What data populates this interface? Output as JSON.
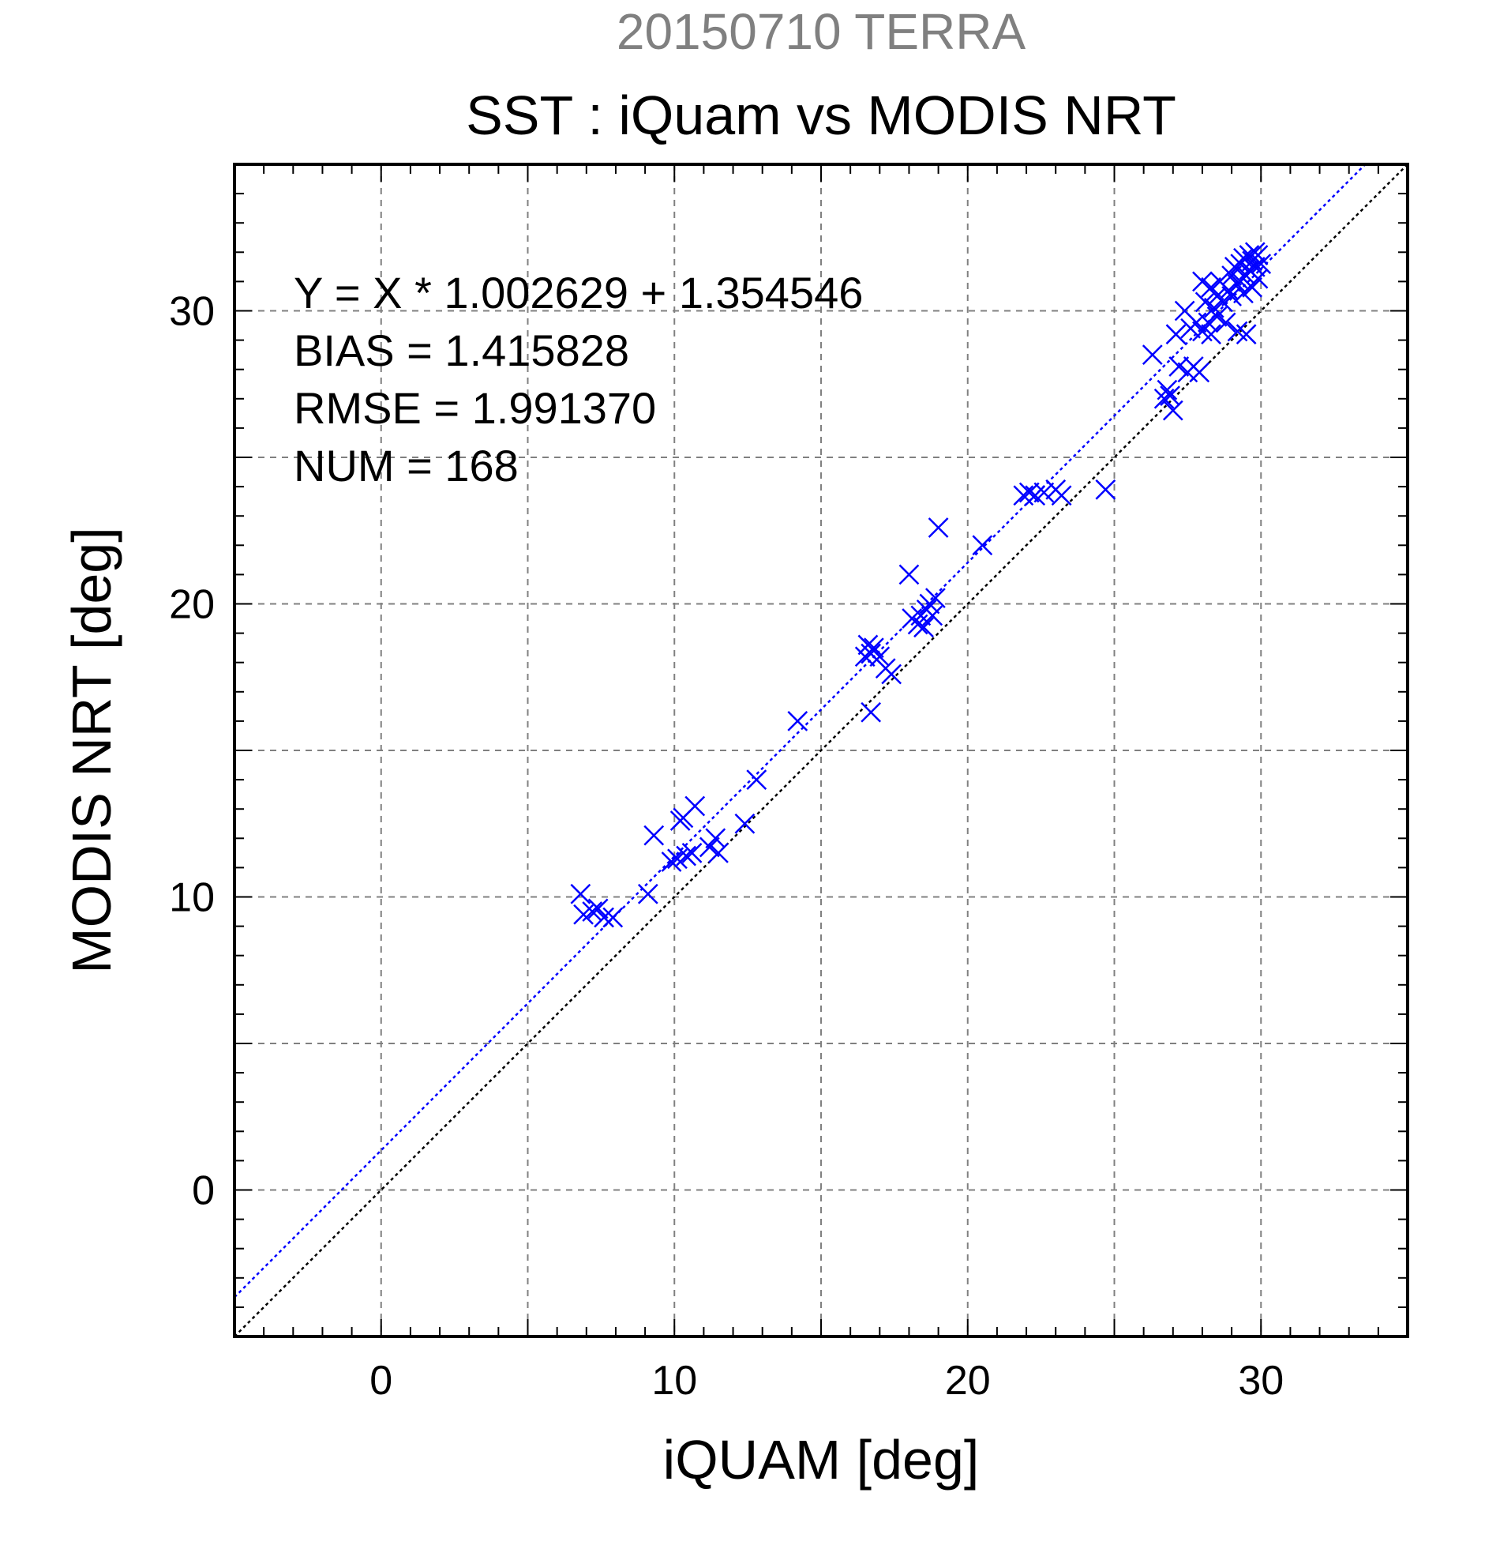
{
  "chart_data": {
    "type": "scatter",
    "title": "20150710 TERRA",
    "subtitle": "SST : iQuam vs MODIS NRT",
    "xlabel": "iQUAM [deg]",
    "ylabel": "MODIS NRT [deg]",
    "xlim": [
      -5,
      35
    ],
    "ylim": [
      -5,
      35
    ],
    "xticks": [
      0,
      10,
      20,
      30
    ],
    "yticks": [
      0,
      10,
      20,
      30
    ],
    "grid": true,
    "annotations": [
      "Y = X * 1.002629 + 1.354546",
      "BIAS = 1.415828",
      "RMSE = 1.991370",
      "NUM = 168"
    ],
    "fit_line": {
      "slope": 1.002629,
      "intercept": 1.354546
    },
    "identity_line": {
      "slope": 1,
      "intercept": 0
    },
    "colors": {
      "title": "#808080",
      "points": "#0000ff",
      "fit": "#0000ff",
      "identity": "#000000",
      "grid": "#808080"
    },
    "series": [
      {
        "marker": "x",
        "points": [
          [
            6.8,
            10.1
          ],
          [
            6.9,
            9.4
          ],
          [
            7.2,
            9.5
          ],
          [
            7.4,
            9.6
          ],
          [
            7.6,
            9.3
          ],
          [
            7.9,
            9.3
          ],
          [
            9.1,
            10.1
          ],
          [
            9.3,
            12.1
          ],
          [
            9.9,
            11.2
          ],
          [
            10.1,
            11.3
          ],
          [
            10.2,
            12.6
          ],
          [
            10.3,
            12.7
          ],
          [
            10.4,
            11.4
          ],
          [
            10.6,
            11.5
          ],
          [
            10.7,
            13.1
          ],
          [
            11.2,
            11.7
          ],
          [
            11.4,
            12.0
          ],
          [
            11.5,
            11.5
          ],
          [
            12.4,
            12.5
          ],
          [
            12.8,
            14.0
          ],
          [
            14.2,
            16.0
          ],
          [
            16.5,
            18.2
          ],
          [
            16.6,
            18.6
          ],
          [
            16.7,
            18.3
          ],
          [
            16.8,
            18.5
          ],
          [
            16.7,
            16.3
          ],
          [
            17.0,
            18.2
          ],
          [
            17.2,
            17.8
          ],
          [
            17.4,
            17.6
          ],
          [
            18.0,
            21.0
          ],
          [
            18.1,
            19.5
          ],
          [
            18.3,
            19.3
          ],
          [
            18.4,
            19.6
          ],
          [
            18.5,
            19.2
          ],
          [
            18.6,
            19.8
          ],
          [
            18.7,
            20.0
          ],
          [
            18.8,
            19.6
          ],
          [
            18.9,
            20.2
          ],
          [
            19.0,
            22.6
          ],
          [
            20.5,
            22.0
          ],
          [
            21.9,
            23.7
          ],
          [
            22.1,
            23.8
          ],
          [
            22.3,
            23.7
          ],
          [
            22.6,
            23.8
          ],
          [
            23.0,
            23.9
          ],
          [
            23.2,
            23.7
          ],
          [
            24.7,
            23.9
          ],
          [
            26.3,
            28.5
          ],
          [
            26.7,
            27.0
          ],
          [
            26.8,
            27.3
          ],
          [
            26.9,
            27.1
          ],
          [
            27.0,
            26.6
          ],
          [
            27.1,
            29.2
          ],
          [
            27.2,
            28.1
          ],
          [
            27.4,
            30.0
          ],
          [
            27.5,
            27.9
          ],
          [
            27.6,
            29.4
          ],
          [
            27.7,
            28.1
          ],
          [
            27.8,
            29.6
          ],
          [
            27.9,
            27.9
          ],
          [
            28.0,
            31.0
          ],
          [
            28.0,
            29.3
          ],
          [
            28.1,
            30.3
          ],
          [
            28.2,
            29.6
          ],
          [
            28.3,
            30.8
          ],
          [
            28.3,
            29.2
          ],
          [
            28.4,
            30.1
          ],
          [
            28.5,
            30.5
          ],
          [
            28.5,
            29.8
          ],
          [
            28.6,
            31.0
          ],
          [
            28.7,
            30.3
          ],
          [
            28.8,
            29.6
          ],
          [
            28.9,
            30.7
          ],
          [
            29.0,
            31.2
          ],
          [
            29.0,
            30.5
          ],
          [
            29.1,
            31.5
          ],
          [
            29.2,
            30.9
          ],
          [
            29.2,
            29.3
          ],
          [
            29.3,
            31.6
          ],
          [
            29.3,
            31.0
          ],
          [
            29.4,
            31.8
          ],
          [
            29.4,
            30.6
          ],
          [
            29.5,
            31.2
          ],
          [
            29.5,
            29.2
          ],
          [
            29.6,
            31.9
          ],
          [
            29.6,
            31.4
          ],
          [
            29.7,
            30.8
          ],
          [
            29.7,
            31.7
          ],
          [
            29.8,
            31.5
          ],
          [
            29.8,
            32.0
          ],
          [
            29.9,
            31.1
          ],
          [
            29.9,
            31.9
          ],
          [
            30.0,
            31.6
          ]
        ]
      }
    ]
  }
}
